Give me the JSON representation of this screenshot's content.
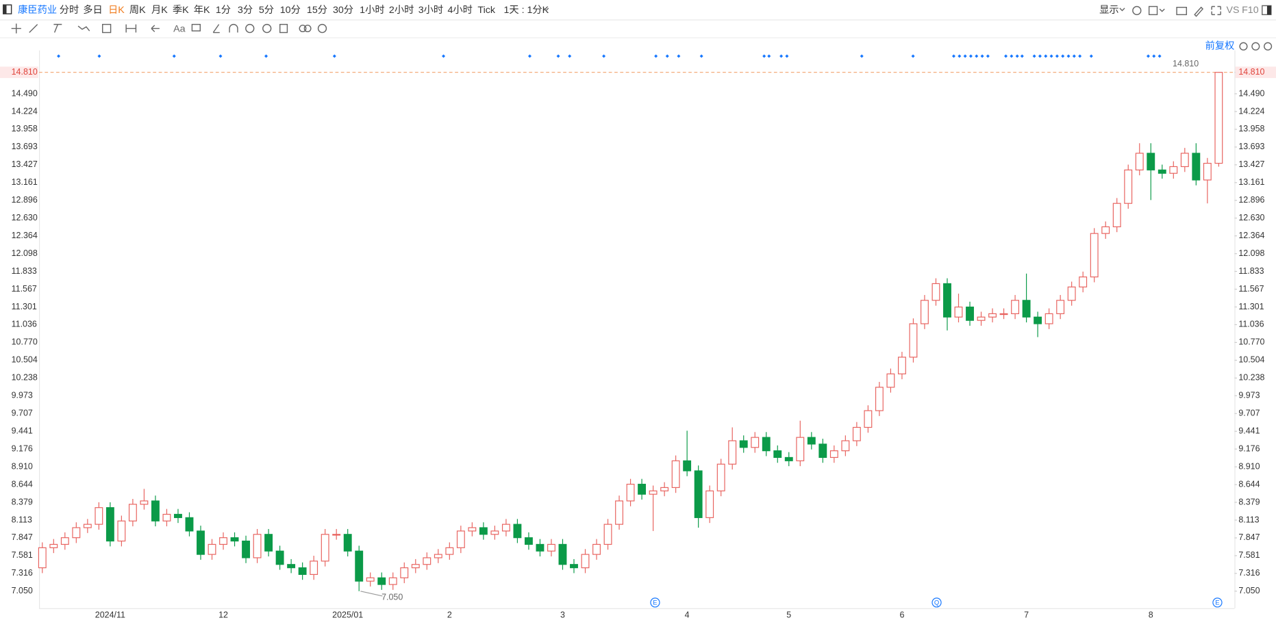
{
  "toolbar": {
    "symbol": "康臣药业",
    "periods": [
      "分时",
      "多日",
      "日K",
      "周K",
      "月K",
      "季K",
      "年K",
      "1分",
      "3分",
      "5分",
      "10分",
      "15分",
      "30分",
      "1小时",
      "2小时",
      "3小时",
      "4小时",
      "Tick"
    ],
    "active_index": 2,
    "interval": "1天 : 1分K",
    "display": "显示",
    "vs": "VS",
    "f10": "F10",
    "text_tool": "Aa"
  },
  "adjust": "前复权",
  "chart_data": {
    "type": "candlestick",
    "up_color": "#e8635f",
    "down_color": "#0b9a48",
    "grid": false,
    "ylim": [
      6.795,
      15.138
    ],
    "yticks": [
      {
        "value": 14.81,
        "label": "14.810"
      },
      {
        "value": 14.49,
        "label": "14.490"
      },
      {
        "value": 14.224,
        "label": "14.224"
      },
      {
        "value": 13.958,
        "label": "13.958"
      },
      {
        "value": 13.693,
        "label": "13.693"
      },
      {
        "value": 13.427,
        "label": "13.427"
      },
      {
        "value": 13.161,
        "label": "13.161"
      },
      {
        "value": 12.896,
        "label": "12.896"
      },
      {
        "value": 12.63,
        "label": "12.630"
      },
      {
        "value": 12.364,
        "label": "12.364"
      },
      {
        "value": 12.098,
        "label": "12.098"
      },
      {
        "value": 11.833,
        "label": "11.833"
      },
      {
        "value": 11.567,
        "label": "11.567"
      },
      {
        "value": 11.301,
        "label": "11.301"
      },
      {
        "value": 11.036,
        "label": "11.036"
      },
      {
        "value": 10.77,
        "label": "10.770"
      },
      {
        "value": 10.504,
        "label": "10.504"
      },
      {
        "value": 10.238,
        "label": "10.238"
      },
      {
        "value": 9.973,
        "label": "9.973"
      },
      {
        "value": 9.707,
        "label": "9.707"
      },
      {
        "value": 9.441,
        "label": "9.441"
      },
      {
        "value": 9.176,
        "label": "9.176"
      },
      {
        "value": 8.91,
        "label": "8.910"
      },
      {
        "value": 8.644,
        "label": "8.644"
      },
      {
        "value": 8.379,
        "label": "8.379"
      },
      {
        "value": 8.113,
        "label": "8.113"
      },
      {
        "value": 7.847,
        "label": "7.847"
      },
      {
        "value": 7.581,
        "label": "7.581"
      },
      {
        "value": 7.316,
        "label": "7.316"
      },
      {
        "value": 7.05,
        "label": "7.050"
      }
    ],
    "categories": [
      null,
      null,
      null,
      null,
      null,
      null,
      "2024/11",
      null,
      null,
      null,
      null,
      null,
      null,
      null,
      null,
      null,
      "12",
      null,
      null,
      null,
      null,
      null,
      null,
      null,
      null,
      null,
      null,
      "2025/01",
      null,
      null,
      null,
      null,
      null,
      null,
      null,
      null,
      "2",
      null,
      null,
      null,
      null,
      null,
      null,
      null,
      null,
      null,
      "3",
      null,
      null,
      null,
      null,
      null,
      null,
      null,
      null,
      null,
      null,
      "4",
      null,
      null,
      null,
      null,
      null,
      null,
      null,
      null,
      "5",
      null,
      null,
      null,
      null,
      null,
      null,
      null,
      null,
      null,
      "6",
      null,
      null,
      null,
      null,
      null,
      null,
      null,
      null,
      null,
      null,
      "7",
      null,
      null,
      null,
      null,
      null,
      null,
      null,
      null,
      null,
      null,
      "8",
      null,
      null,
      null,
      null,
      null,
      null
    ],
    "open": [
      7.4,
      7.7,
      7.75,
      7.85,
      8.0,
      8.05,
      8.3,
      7.8,
      8.1,
      8.35,
      8.4,
      8.1,
      8.2,
      8.15,
      7.95,
      7.6,
      7.75,
      7.85,
      7.8,
      7.55,
      7.9,
      7.65,
      7.45,
      7.4,
      7.3,
      7.5,
      7.9,
      7.9,
      7.65,
      7.2,
      7.25,
      7.15,
      7.25,
      7.4,
      7.45,
      7.55,
      7.6,
      7.7,
      7.95,
      8.0,
      7.9,
      7.95,
      8.05,
      7.85,
      7.75,
      7.65,
      7.75,
      7.45,
      7.4,
      7.6,
      7.75,
      8.05,
      8.4,
      8.65,
      8.5,
      8.55,
      8.6,
      9.0,
      8.85,
      8.15,
      8.55,
      8.95,
      9.3,
      9.2,
      9.35,
      9.15,
      9.05,
      9.0,
      9.35,
      9.25,
      9.05,
      9.15,
      9.3,
      9.5,
      9.75,
      10.1,
      10.3,
      10.55,
      11.05,
      11.4,
      11.65,
      11.15,
      11.3,
      11.1,
      11.15,
      11.2,
      11.2,
      11.4,
      11.15,
      11.05,
      11.2,
      11.4,
      11.6,
      11.75,
      12.4,
      12.5,
      12.85,
      13.35,
      13.6,
      13.35,
      13.3,
      13.4,
      13.6,
      13.2,
      13.45
    ],
    "high": [
      7.78,
      7.83,
      7.93,
      8.08,
      8.13,
      8.38,
      8.38,
      8.18,
      8.43,
      8.58,
      8.48,
      8.28,
      8.28,
      8.23,
      8.03,
      7.83,
      7.93,
      7.93,
      7.88,
      7.98,
      7.98,
      7.73,
      7.53,
      7.48,
      7.58,
      7.98,
      7.98,
      7.98,
      7.73,
      7.33,
      7.33,
      7.33,
      7.48,
      7.53,
      7.63,
      7.68,
      7.78,
      8.03,
      8.08,
      8.08,
      8.03,
      8.13,
      8.13,
      7.93,
      7.83,
      7.83,
      7.83,
      7.53,
      7.68,
      7.83,
      8.13,
      8.48,
      8.73,
      8.73,
      8.63,
      8.68,
      9.08,
      9.45,
      8.93,
      8.63,
      9.03,
      9.5,
      9.38,
      9.43,
      9.43,
      9.23,
      9.13,
      9.6,
      9.43,
      9.33,
      9.23,
      9.38,
      9.58,
      9.83,
      10.18,
      10.38,
      10.63,
      11.13,
      11.48,
      11.73,
      11.73,
      11.5,
      11.38,
      11.23,
      11.28,
      11.28,
      11.48,
      11.8,
      11.23,
      11.28,
      11.48,
      11.68,
      11.83,
      12.48,
      12.58,
      12.93,
      13.43,
      13.75,
      13.75,
      13.43,
      13.48,
      13.68,
      13.75,
      13.53,
      14.81
    ],
    "low": [
      7.32,
      7.62,
      7.67,
      7.77,
      7.92,
      7.97,
      7.72,
      7.72,
      8.02,
      8.27,
      8.02,
      8.02,
      8.07,
      7.87,
      7.52,
      7.52,
      7.67,
      7.72,
      7.47,
      7.47,
      7.57,
      7.37,
      7.32,
      7.22,
      7.22,
      7.42,
      7.82,
      7.57,
      7.05,
      7.12,
      7.07,
      7.07,
      7.17,
      7.32,
      7.37,
      7.47,
      7.52,
      7.62,
      7.87,
      7.82,
      7.82,
      7.87,
      7.77,
      7.67,
      7.57,
      7.57,
      7.37,
      7.32,
      7.32,
      7.52,
      7.67,
      7.97,
      8.32,
      8.42,
      7.95,
      8.47,
      8.52,
      8.77,
      8.0,
      8.07,
      8.47,
      8.87,
      9.12,
      9.12,
      9.07,
      8.97,
      8.92,
      8.92,
      9.17,
      8.97,
      8.97,
      9.07,
      9.22,
      9.42,
      9.67,
      10.02,
      10.22,
      10.47,
      10.97,
      11.32,
      10.95,
      11.07,
      11.02,
      11.02,
      11.07,
      11.12,
      11.12,
      11.07,
      10.85,
      10.97,
      11.12,
      11.32,
      11.52,
      11.67,
      12.32,
      12.42,
      12.77,
      13.27,
      12.9,
      13.22,
      13.22,
      13.32,
      13.12,
      12.85,
      13.4
    ],
    "close": [
      7.7,
      7.75,
      7.85,
      8.0,
      8.05,
      8.3,
      7.8,
      8.1,
      8.35,
      8.4,
      8.1,
      8.2,
      8.15,
      7.95,
      7.6,
      7.75,
      7.85,
      7.8,
      7.55,
      7.9,
      7.65,
      7.45,
      7.4,
      7.3,
      7.5,
      7.9,
      7.9,
      7.65,
      7.2,
      7.25,
      7.15,
      7.25,
      7.4,
      7.45,
      7.55,
      7.6,
      7.7,
      7.95,
      8.0,
      7.9,
      7.95,
      8.05,
      7.85,
      7.75,
      7.65,
      7.75,
      7.45,
      7.4,
      7.6,
      7.75,
      8.05,
      8.4,
      8.65,
      8.5,
      8.55,
      8.6,
      9.0,
      8.85,
      8.15,
      8.55,
      8.95,
      9.3,
      9.2,
      9.35,
      9.15,
      9.05,
      9.0,
      9.35,
      9.25,
      9.05,
      9.15,
      9.3,
      9.5,
      9.75,
      10.1,
      10.3,
      10.55,
      11.05,
      11.4,
      11.65,
      11.15,
      11.3,
      11.1,
      11.15,
      11.2,
      11.2,
      11.4,
      11.15,
      11.05,
      11.2,
      11.4,
      11.6,
      11.75,
      12.4,
      12.5,
      12.85,
      13.35,
      13.6,
      13.35,
      13.3,
      13.4,
      13.6,
      13.2,
      13.45,
      14.81
    ],
    "price_line": {
      "value": 14.81,
      "label": "14.810"
    },
    "annotations": [
      {
        "value": 14.81,
        "label": "14.810"
      },
      {
        "value": 7.05,
        "label": "7.050"
      }
    ],
    "events": [
      "E",
      "Q",
      "E"
    ]
  }
}
